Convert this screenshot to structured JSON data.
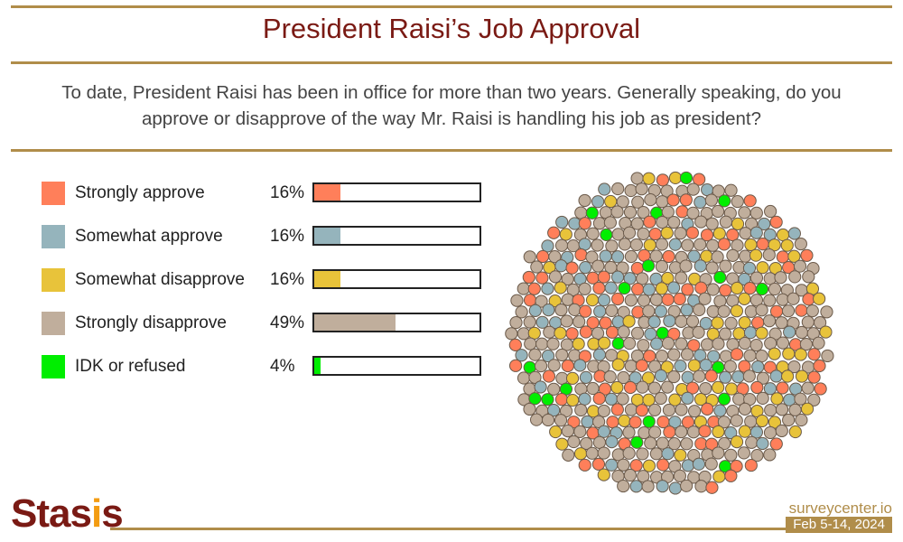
{
  "title": "President Raisi’s Job Approval",
  "question": "To date, President Raisi has been in office for more than two years. Generally speaking, do you approve or disapprove of the way Mr. Raisi is handling his job as president?",
  "chart_data": {
    "type": "bar",
    "title": "President Raisi’s Job Approval",
    "categories": [
      "Strongly approve",
      "Somewhat approve",
      "Somewhat disapprove",
      "Strongly disapprove",
      "IDK or refused"
    ],
    "values": [
      16,
      16,
      16,
      49,
      4
    ],
    "value_labels": [
      "16%",
      "16%",
      "16%",
      "49%",
      "4%"
    ],
    "colors": [
      "#ff7f5a",
      "#95b4bc",
      "#e8c33a",
      "#c0ae9c",
      "#00ee00"
    ],
    "ylim": [
      0,
      100
    ],
    "legend": "left"
  },
  "footer": {
    "logo": "Stasis",
    "site": "surveycenter.io",
    "date": "Feb 5-14, 2024"
  }
}
